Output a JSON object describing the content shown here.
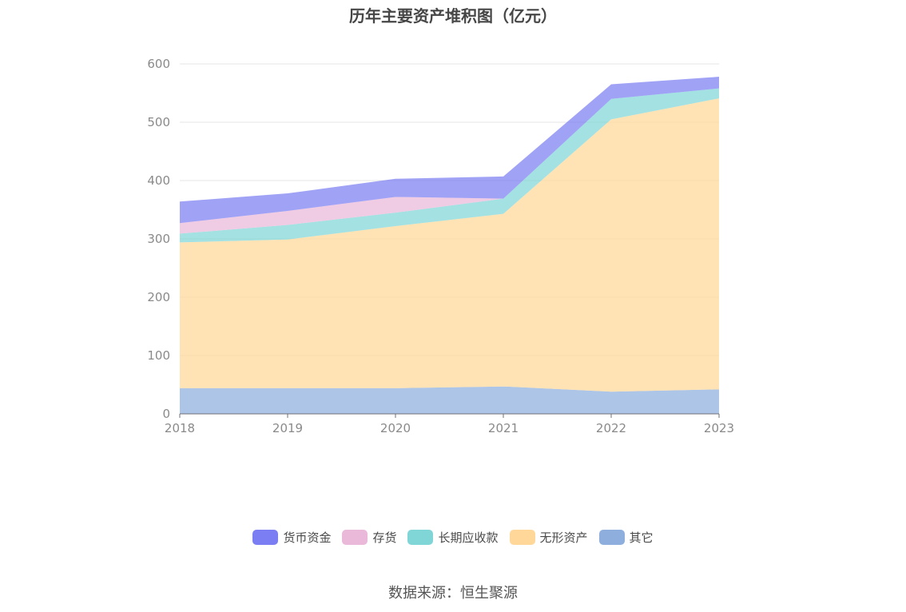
{
  "chart_data": {
    "type": "area",
    "stacked": true,
    "title": "历年主要资产堆积图（亿元）",
    "x": [
      "2018",
      "2019",
      "2020",
      "2021",
      "2022",
      "2023"
    ],
    "ylim": [
      0,
      600
    ],
    "yticks": [
      0,
      100,
      200,
      300,
      400,
      500,
      600
    ],
    "grid": true,
    "legend_position": "bottom",
    "series": [
      {
        "name": "其它",
        "color": "#8eaedd",
        "values": [
          44,
          44,
          44,
          47,
          38,
          42
        ]
      },
      {
        "name": "无形资产",
        "color": "#ffd899",
        "values": [
          250,
          255,
          278,
          296,
          467,
          499
        ]
      },
      {
        "name": "长期应收款",
        "color": "#80d5d7",
        "values": [
          15,
          25,
          23,
          26,
          35,
          17
        ]
      },
      {
        "name": "存货",
        "color": "#eab8d9",
        "values": [
          18,
          24,
          27,
          0,
          0,
          0
        ]
      },
      {
        "name": "货币资金",
        "color": "#7b7ef2",
        "values": [
          37,
          30,
          31,
          38,
          25,
          20
        ]
      }
    ],
    "legend_order": [
      "货币资金",
      "存货",
      "长期应收款",
      "无形资产",
      "其它"
    ]
  },
  "footer": {
    "source": "数据来源：恒生聚源"
  }
}
